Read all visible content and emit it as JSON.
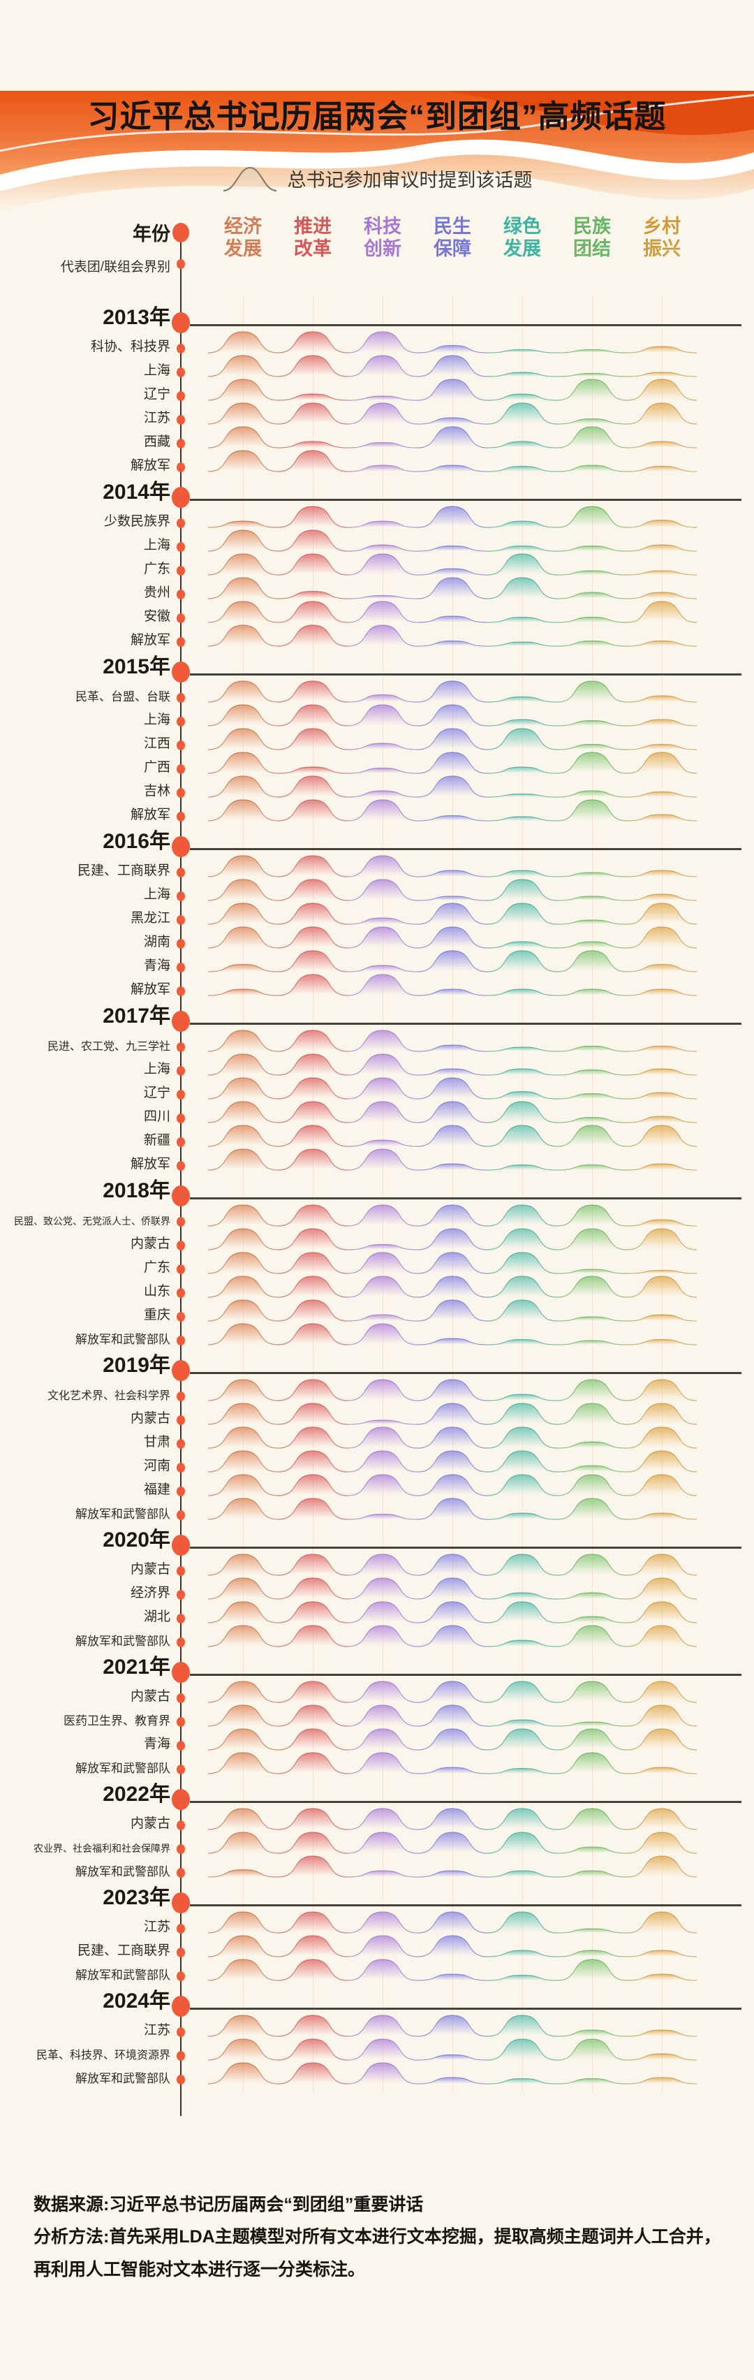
{
  "page": {
    "background": "#fbf6ec"
  },
  "banner": {
    "deep_orange": "#e2480c",
    "orange": "#ea5614",
    "light_orange": "#f6a96d",
    "white": "#ffffff"
  },
  "title": "习近平总书记历届两会“到团组”高频话题",
  "legend": {
    "label": "总书记参加审议时提到该话题",
    "icon": "bell-curve-icon",
    "icon_stroke": "#8d7d6c",
    "icon_fill": "#e8dcc8"
  },
  "axis": {
    "year_label": "年份",
    "group_label": "代表团/联组会界别",
    "dot_color": "#ee5a3a",
    "line_color": "#3b332b"
  },
  "topics": [
    {
      "lines": [
        "经济",
        "发展"
      ],
      "color": "#cd7e58",
      "fill": "#e08a5e",
      "stroke": "#b76a44"
    },
    {
      "lines": [
        "推进",
        "改革"
      ],
      "color": "#d55858",
      "fill": "#e06868",
      "stroke": "#bf5252"
    },
    {
      "lines": [
        "科技",
        "创新"
      ],
      "color": "#a478d2",
      "fill": "#b286dc",
      "stroke": "#9670c2"
    },
    {
      "lines": [
        "民生",
        "保障"
      ],
      "color": "#7678d8",
      "fill": "#8a88e6",
      "stroke": "#6f6fc4"
    },
    {
      "lines": [
        "绿色",
        "发展"
      ],
      "color": "#3fb2a0",
      "fill": "#5cc0b0",
      "stroke": "#3fa090"
    },
    {
      "lines": [
        "民族",
        "团结"
      ],
      "color": "#67b463",
      "fill": "#82c674",
      "stroke": "#62a85a"
    },
    {
      "lines": [
        "乡村",
        "振兴"
      ],
      "color": "#cf9c3a",
      "fill": "#e2a94e",
      "stroke": "#bd923c"
    }
  ],
  "chart_data": {
    "type": "ridgeline",
    "columns": [
      "经济发展",
      "推进改革",
      "科技创新",
      "民生保障",
      "绿色发展",
      "民族团结",
      "乡村振兴"
    ],
    "value_note": "relative mention intensity 0-1, 1 = tall peak",
    "sections": [
      {
        "year": "2013年",
        "rows": [
          {
            "label": "科协、科技界",
            "values": [
              1,
              1,
              1,
              0.35,
              0.15,
              0.15,
              0.3
            ]
          },
          {
            "label": "上海",
            "values": [
              1,
              1,
              1,
              1,
              0.2,
              0.15,
              0.2
            ]
          },
          {
            "label": "辽宁",
            "values": [
              1,
              0.3,
              0.2,
              1,
              0.3,
              1,
              1
            ]
          },
          {
            "label": "江苏",
            "values": [
              1,
              1,
              1,
              0.3,
              1,
              0.25,
              1
            ]
          },
          {
            "label": "西藏",
            "values": [
              1,
              0.3,
              0.25,
              1,
              0.3,
              1,
              0.3
            ]
          },
          {
            "label": "解放军",
            "values": [
              1,
              1,
              0.3,
              0.3,
              0.25,
              0.3,
              0.25
            ]
          }
        ]
      },
      {
        "year": "2014年",
        "rows": [
          {
            "label": "少数民族界",
            "values": [
              0.3,
              1,
              0.3,
              1,
              0.3,
              1,
              0.35
            ]
          },
          {
            "label": "上海",
            "values": [
              1,
              1,
              0.3,
              0.25,
              0.25,
              0.25,
              0.3
            ]
          },
          {
            "label": "广东",
            "values": [
              1,
              1,
              1,
              0.3,
              1,
              0.2,
              0.2
            ]
          },
          {
            "label": "贵州",
            "values": [
              1,
              0.35,
              0.15,
              1,
              1,
              0.3,
              0.3
            ]
          },
          {
            "label": "安徽",
            "values": [
              1,
              1,
              1,
              0.3,
              0.25,
              0.25,
              1
            ]
          },
          {
            "label": "解放军",
            "values": [
              1,
              1,
              1,
              0.25,
              0.2,
              0.25,
              0.25
            ]
          }
        ]
      },
      {
        "year": "2015年",
        "rows": [
          {
            "label": "民革、台盟、台联",
            "values": [
              1,
              1,
              0.35,
              1,
              0.25,
              1,
              0.3
            ]
          },
          {
            "label": "上海",
            "values": [
              1,
              1,
              1,
              1,
              0.3,
              0.25,
              0.3
            ]
          },
          {
            "label": "江西",
            "values": [
              1,
              1,
              0.3,
              1,
              1,
              0.25,
              0.25
            ]
          },
          {
            "label": "广西",
            "values": [
              1,
              0.3,
              0.25,
              1,
              0.3,
              1,
              1
            ]
          },
          {
            "label": "吉林",
            "values": [
              1,
              1,
              0.3,
              1,
              0.15,
              0.3,
              0.25
            ]
          },
          {
            "label": "解放军",
            "values": [
              1,
              1,
              1,
              0.25,
              0.2,
              1,
              0.3
            ]
          }
        ]
      },
      {
        "year": "2016年",
        "rows": [
          {
            "label": "民建、工商联界",
            "values": [
              1,
              1,
              1,
              0.3,
              0.3,
              0.2,
              0.3
            ]
          },
          {
            "label": "上海",
            "values": [
              1,
              1,
              1,
              0.2,
              1,
              0.2,
              0.3
            ]
          },
          {
            "label": "黑龙江",
            "values": [
              1,
              1,
              0.3,
              1,
              1,
              0.2,
              1
            ]
          },
          {
            "label": "湖南",
            "values": [
              1,
              1,
              1,
              1,
              0.3,
              0.3,
              1
            ]
          },
          {
            "label": "青海",
            "values": [
              0.35,
              1,
              0.3,
              1,
              1,
              1,
              0.35
            ]
          },
          {
            "label": "解放军",
            "values": [
              0.3,
              1,
              1,
              0.3,
              0.3,
              0.3,
              0.3
            ]
          }
        ]
      },
      {
        "year": "2017年",
        "rows": [
          {
            "label": "民进、农工党、九三学社",
            "values": [
              1,
              1,
              1,
              0.3,
              0.2,
              0.25,
              0.25
            ]
          },
          {
            "label": "上海",
            "values": [
              1,
              1,
              1,
              0.3,
              0.3,
              0.25,
              0.3
            ]
          },
          {
            "label": "辽宁",
            "values": [
              1,
              1,
              1,
              1,
              0.35,
              0.25,
              0.3
            ]
          },
          {
            "label": "四川",
            "values": [
              1,
              1,
              1,
              1,
              1,
              0.25,
              0.3
            ]
          },
          {
            "label": "新疆",
            "values": [
              1,
              1,
              0.3,
              1,
              1,
              1,
              1
            ]
          },
          {
            "label": "解放军",
            "values": [
              1,
              1,
              1,
              0.3,
              0.25,
              0.25,
              0.3
            ]
          }
        ]
      },
      {
        "year": "2018年",
        "rows": [
          {
            "label": "民盟、致公党、无党派人士、侨联界",
            "values": [
              1,
              1,
              1,
              1,
              1,
              1,
              0.3
            ]
          },
          {
            "label": "内蒙古",
            "values": [
              1,
              1,
              0.25,
              1,
              1,
              1,
              1
            ]
          },
          {
            "label": "广东",
            "values": [
              1,
              1,
              1,
              1,
              1,
              0.2,
              0.15
            ]
          },
          {
            "label": "山东",
            "values": [
              1,
              1,
              1,
              1,
              1,
              1,
              1
            ]
          },
          {
            "label": "重庆",
            "values": [
              1,
              1,
              0.3,
              1,
              1,
              0.2,
              0.3
            ]
          },
          {
            "label": "解放军和武警部队",
            "values": [
              1,
              1,
              1,
              0.3,
              0.25,
              0.2,
              0.25
            ]
          }
        ]
      },
      {
        "year": "2019年",
        "rows": [
          {
            "label": "文化艺术界、社会科学界",
            "values": [
              1,
              1,
              1,
              1,
              0.3,
              1,
              1
            ]
          },
          {
            "label": "内蒙古",
            "values": [
              1,
              1,
              0.2,
              1,
              1,
              1,
              1
            ]
          },
          {
            "label": "甘肃",
            "values": [
              1,
              1,
              1,
              1,
              1,
              0.3,
              1
            ]
          },
          {
            "label": "河南",
            "values": [
              1,
              1,
              1,
              1,
              1,
              0.3,
              1
            ]
          },
          {
            "label": "福建",
            "values": [
              1,
              1,
              1,
              1,
              1,
              1,
              1
            ]
          },
          {
            "label": "解放军和武警部队",
            "values": [
              1,
              1,
              0.25,
              1,
              0.3,
              1,
              0.3
            ]
          }
        ]
      },
      {
        "year": "2020年",
        "rows": [
          {
            "label": "内蒙古",
            "values": [
              1,
              1,
              1,
              1,
              1,
              1,
              1
            ]
          },
          {
            "label": "经济界",
            "values": [
              1,
              1,
              1,
              1,
              0.3,
              0.3,
              1
            ]
          },
          {
            "label": "湖北",
            "values": [
              1,
              1,
              1,
              1,
              1,
              0.3,
              1
            ]
          },
          {
            "label": "解放军和武警部队",
            "values": [
              1,
              1,
              1,
              1,
              0.3,
              1,
              1
            ]
          }
        ]
      },
      {
        "year": "2021年",
        "rows": [
          {
            "label": "内蒙古",
            "values": [
              1,
              1,
              1,
              1,
              1,
              1,
              1
            ]
          },
          {
            "label": "医药卫生界、教育界",
            "values": [
              1,
              1,
              1,
              1,
              0.3,
              0.2,
              1
            ]
          },
          {
            "label": "青海",
            "values": [
              1,
              1,
              1,
              1,
              1,
              1,
              1
            ]
          },
          {
            "label": "解放军和武警部队",
            "values": [
              1,
              1,
              1,
              0.3,
              0.25,
              1,
              0.3
            ]
          }
        ]
      },
      {
        "year": "2022年",
        "rows": [
          {
            "label": "内蒙古",
            "values": [
              1,
              1,
              1,
              1,
              1,
              1,
              1
            ]
          },
          {
            "label": "农业界、社会福利和社会保障界",
            "values": [
              1,
              1,
              1,
              1,
              1,
              0.3,
              1
            ]
          },
          {
            "label": "解放军和武警部队",
            "values": [
              0.35,
              1,
              0.3,
              0.3,
              0.3,
              0.3,
              1
            ]
          }
        ]
      },
      {
        "year": "2023年",
        "rows": [
          {
            "label": "江苏",
            "values": [
              1,
              1,
              1,
              1,
              1,
              0.2,
              1
            ]
          },
          {
            "label": "民建、工商联界",
            "values": [
              1,
              1,
              1,
              1,
              0.3,
              0.3,
              0.3
            ]
          },
          {
            "label": "解放军和武警部队",
            "values": [
              1,
              1,
              1,
              0.3,
              0.25,
              1,
              0.3
            ]
          }
        ]
      },
      {
        "year": "2024年",
        "rows": [
          {
            "label": "江苏",
            "values": [
              1,
              1,
              1,
              1,
              1,
              0.3,
              0.3
            ]
          },
          {
            "label": "民革、科技界、环境资源界",
            "values": [
              1,
              1,
              1,
              0.25,
              1,
              1,
              0.3
            ]
          },
          {
            "label": "解放军和武警部队",
            "values": [
              1,
              1,
              1,
              0.3,
              0.25,
              0.25,
              0.3
            ]
          }
        ]
      }
    ]
  },
  "footer": {
    "source": "数据来源:习近平总书记历届两会“到团组”重要讲话",
    "method": "分析方法:首先采用LDA主题模型对所有文本进行文本挖掘，提取高频主题词并人工合并，再利用人工智能对文本进行逐一分类标注。"
  }
}
